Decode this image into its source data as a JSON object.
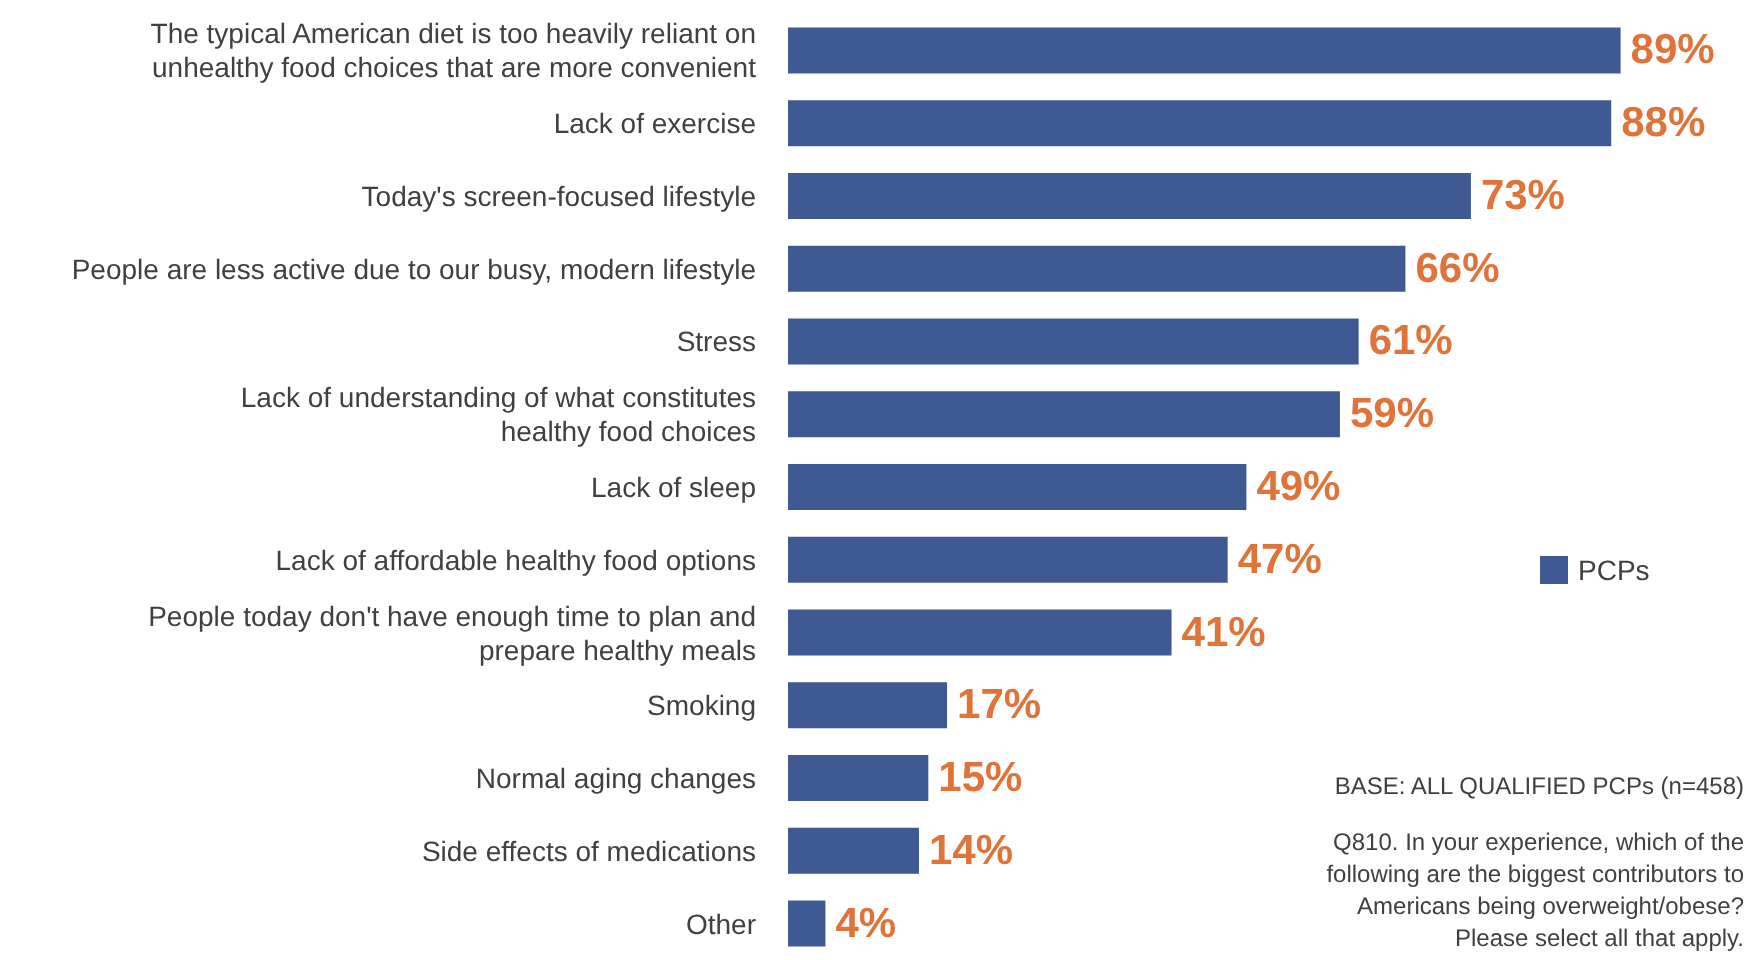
{
  "chart_data": {
    "type": "bar",
    "orientation": "horizontal",
    "categories": [
      "The typical American diet is too heavily reliant on\nunhealthy food choices that are more convenient",
      "Lack of exercise",
      "Today's screen-focused lifestyle",
      "People are less active due to our busy, modern lifestyle",
      "Stress",
      "Lack of understanding of what constitutes\nhealthy food choices",
      "Lack of sleep",
      "Lack of affordable healthy food options",
      "People today don't have enough time to plan and\nprepare healthy meals",
      "Smoking",
      "Normal aging changes",
      "Side effects of medications",
      "Other"
    ],
    "series": [
      {
        "name": "PCPs",
        "color": "#3f5a92",
        "values": [
          89,
          88,
          73,
          66,
          61,
          59,
          49,
          47,
          41,
          17,
          15,
          14,
          4
        ],
        "value_labels": [
          "89%",
          "88%",
          "73%",
          "66%",
          "61%",
          "59%",
          "49%",
          "47%",
          "41%",
          "17%",
          "15%",
          "14%",
          "4%"
        ]
      }
    ],
    "legend": "right",
    "annotations": [
      "BASE: ALL QUALIFIED PCPs (n=458)",
      "Q810. In your experience, which of the\nfollowing are the biggest contributors to\nAmericans being overweight/obese?\nPlease select all that apply."
    ]
  }
}
